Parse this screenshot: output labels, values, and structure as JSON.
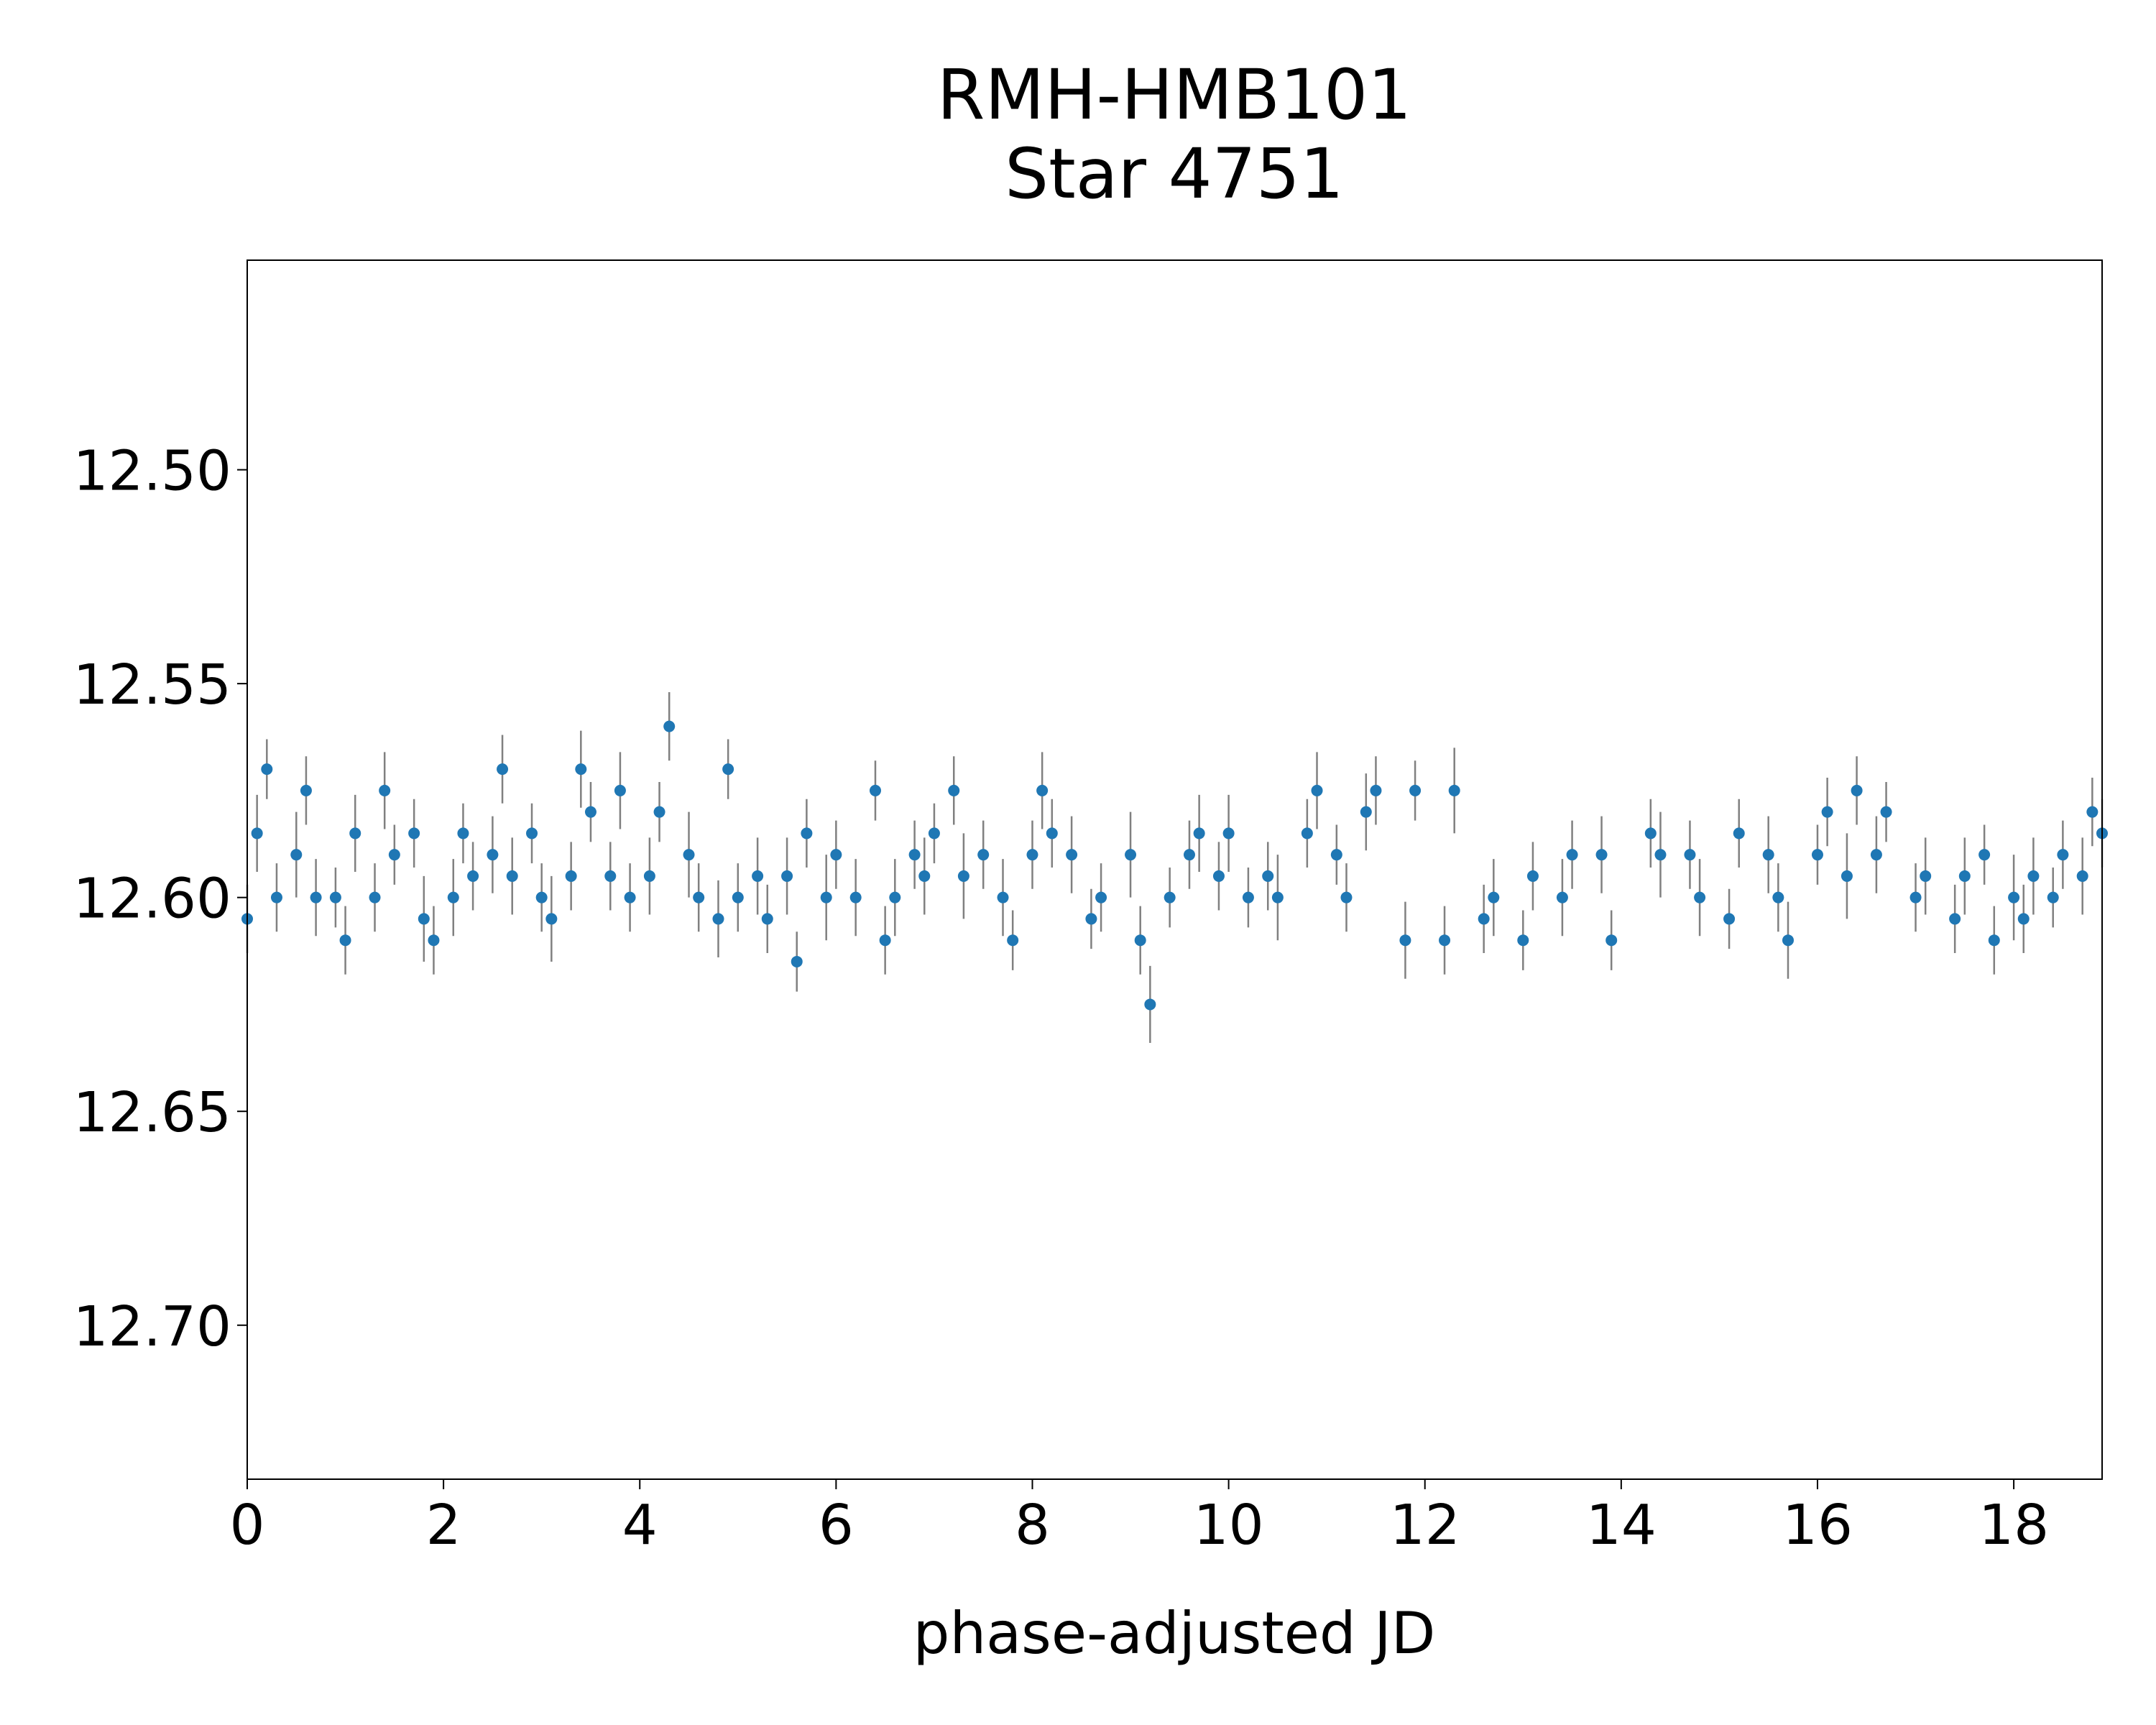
{
  "chart_data": {
    "type": "errorbar-scatter",
    "title": [
      "RMH-HMB101",
      "Star 4751"
    ],
    "xlabel": "phase-adjusted JD",
    "xlim": [
      0,
      18.9
    ],
    "xticks": [
      0,
      2,
      4,
      6,
      8,
      10,
      12,
      14,
      16,
      18
    ],
    "ylim": [
      12.451,
      12.736
    ],
    "y_inverted": true,
    "yticks": [
      {
        "value": 12.5,
        "label": "12.50"
      },
      {
        "value": 12.55,
        "label": "12.55"
      },
      {
        "value": 12.6,
        "label": "12.60"
      },
      {
        "value": 12.65,
        "label": "12.65"
      },
      {
        "value": 12.7,
        "label": "12.70"
      }
    ],
    "color": "#1f77b4",
    "error_color": "#808080",
    "x": [
      0.0,
      0.1,
      0.2,
      0.3,
      0.5,
      0.6,
      0.7,
      0.9,
      1.0,
      1.1,
      1.3,
      1.4,
      1.5,
      1.7,
      1.8,
      1.9,
      2.1,
      2.2,
      2.3,
      2.5,
      2.6,
      2.7,
      2.9,
      3.0,
      3.1,
      3.3,
      3.4,
      3.5,
      3.7,
      3.8,
      3.9,
      4.1,
      4.2,
      4.3,
      4.5,
      4.6,
      4.8,
      4.9,
      5.0,
      5.2,
      5.3,
      5.5,
      5.6,
      5.7,
      5.9,
      6.0,
      6.2,
      6.4,
      6.5,
      6.6,
      6.8,
      6.9,
      7.0,
      7.2,
      7.3,
      7.5,
      7.7,
      7.8,
      8.0,
      8.1,
      8.2,
      8.4,
      8.6,
      8.7,
      9.0,
      9.1,
      9.2,
      9.4,
      9.6,
      9.7,
      9.9,
      10.0,
      10.2,
      10.4,
      10.5,
      10.8,
      10.9,
      11.1,
      11.2,
      11.4,
      11.5,
      11.8,
      11.9,
      12.2,
      12.3,
      12.6,
      12.7,
      13.0,
      13.1,
      13.4,
      13.5,
      13.8,
      13.9,
      14.3,
      14.4,
      14.7,
      14.8,
      15.1,
      15.2,
      15.5,
      15.6,
      15.7,
      16.0,
      16.1,
      16.3,
      16.4,
      16.6,
      16.7,
      17.0,
      17.1,
      17.4,
      17.5,
      17.7,
      17.8,
      18.0,
      18.1,
      18.2,
      18.4,
      18.5,
      18.7,
      18.8,
      18.9
    ],
    "values": [
      12.605,
      12.585,
      12.57,
      12.6,
      12.59,
      12.575,
      12.6,
      12.6,
      12.61,
      12.585,
      12.6,
      12.575,
      12.59,
      12.585,
      12.605,
      12.61,
      12.6,
      12.585,
      12.595,
      12.59,
      12.57,
      12.595,
      12.585,
      12.6,
      12.605,
      12.595,
      12.57,
      12.58,
      12.595,
      12.575,
      12.6,
      12.595,
      12.58,
      12.56,
      12.59,
      12.6,
      12.605,
      12.57,
      12.6,
      12.595,
      12.605,
      12.595,
      12.615,
      12.585,
      12.6,
      12.59,
      12.6,
      12.575,
      12.61,
      12.6,
      12.59,
      12.595,
      12.585,
      12.575,
      12.595,
      12.59,
      12.6,
      12.61,
      12.59,
      12.575,
      12.585,
      12.59,
      12.605,
      12.6,
      12.59,
      12.61,
      12.625,
      12.6,
      12.59,
      12.585,
      12.595,
      12.585,
      12.6,
      12.595,
      12.6,
      12.585,
      12.575,
      12.59,
      12.6,
      12.58,
      12.575,
      12.61,
      12.575,
      12.61,
      12.575,
      12.605,
      12.6,
      12.61,
      12.595,
      12.6,
      12.59,
      12.59,
      12.61,
      12.585,
      12.59,
      12.59,
      12.6,
      12.605,
      12.585,
      12.59,
      12.6,
      12.61,
      12.59,
      12.58,
      12.595,
      12.575,
      12.59,
      12.58,
      12.6,
      12.595,
      12.605,
      12.595,
      12.59,
      12.61,
      12.6,
      12.605,
      12.595,
      12.6,
      12.59,
      12.595,
      12.58,
      12.585
    ],
    "errors": [
      0.008,
      0.009,
      0.007,
      0.008,
      0.01,
      0.008,
      0.009,
      0.007,
      0.008,
      0.009,
      0.008,
      0.009,
      0.007,
      0.008,
      0.01,
      0.008,
      0.009,
      0.007,
      0.008,
      0.009,
      0.008,
      0.009,
      0.007,
      0.008,
      0.01,
      0.008,
      0.009,
      0.007,
      0.008,
      0.009,
      0.008,
      0.009,
      0.007,
      0.008,
      0.01,
      0.008,
      0.009,
      0.007,
      0.008,
      0.009,
      0.008,
      0.009,
      0.007,
      0.008,
      0.01,
      0.008,
      0.009,
      0.007,
      0.008,
      0.009,
      0.008,
      0.009,
      0.007,
      0.008,
      0.01,
      0.008,
      0.009,
      0.007,
      0.008,
      0.009,
      0.008,
      0.009,
      0.007,
      0.008,
      0.01,
      0.008,
      0.009,
      0.007,
      0.008,
      0.009,
      0.008,
      0.009,
      0.007,
      0.008,
      0.01,
      0.008,
      0.009,
      0.007,
      0.008,
      0.009,
      0.008,
      0.009,
      0.007,
      0.008,
      0.01,
      0.008,
      0.009,
      0.007,
      0.008,
      0.009,
      0.008,
      0.009,
      0.007,
      0.008,
      0.01,
      0.008,
      0.009,
      0.007,
      0.008,
      0.009,
      0.008,
      0.009,
      0.007,
      0.008,
      0.01,
      0.008,
      0.009,
      0.007,
      0.008,
      0.009,
      0.008,
      0.009,
      0.007,
      0.008,
      0.01,
      0.008,
      0.009,
      0.007,
      0.008,
      0.009,
      0.008,
      0.008
    ]
  }
}
